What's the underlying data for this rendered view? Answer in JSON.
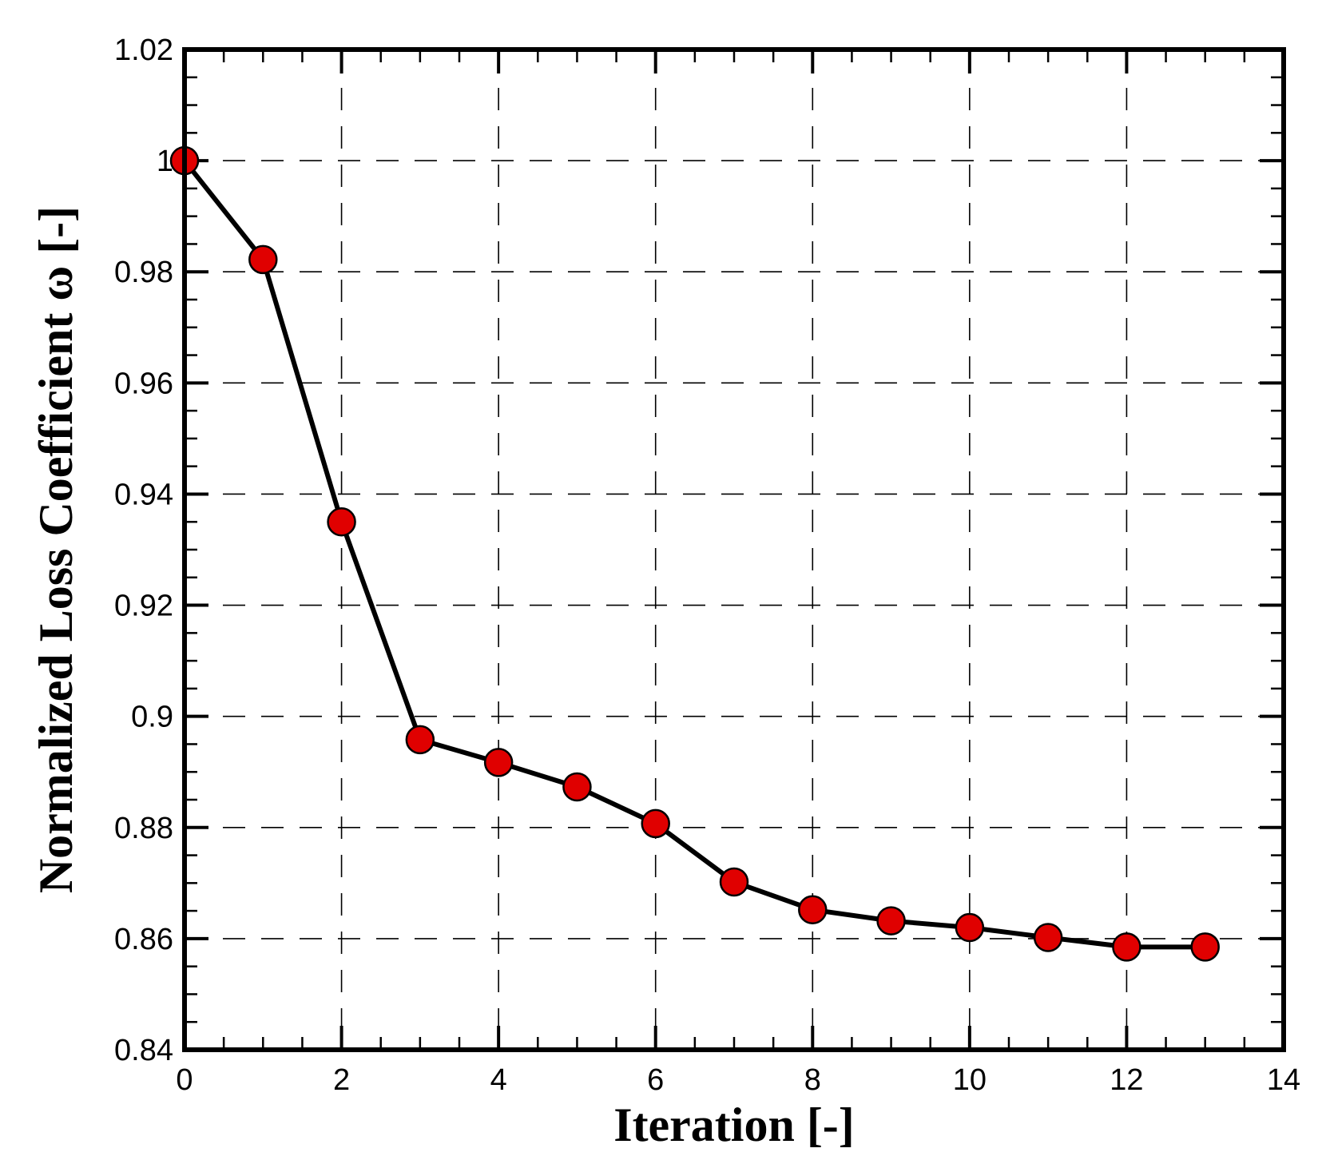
{
  "chart_data": {
    "type": "line",
    "title": "",
    "xlabel": "Iteration [-]",
    "ylabel": "Normalized Loss Coefficient ω [-]",
    "xlim": [
      0,
      14
    ],
    "ylim": [
      0.84,
      1.02
    ],
    "x_ticks": [
      0,
      2,
      4,
      6,
      8,
      10,
      12,
      14
    ],
    "x_tick_labels": [
      "0",
      "2",
      "4",
      "6",
      "8",
      "10",
      "12",
      "14"
    ],
    "y_ticks": [
      0.84,
      0.86,
      0.88,
      0.9,
      0.92,
      0.94,
      0.96,
      0.98,
      1.0,
      1.02
    ],
    "y_tick_labels": [
      "0.84",
      "0.86",
      "0.88",
      "0.9",
      "0.92",
      "0.94",
      "0.96",
      "0.98",
      "1",
      "1.02"
    ],
    "grid": true,
    "grid_style": "dashed",
    "legend": "none",
    "series": [
      {
        "x": [
          0,
          1,
          2,
          3,
          4,
          5,
          6,
          7,
          8,
          9,
          10,
          11,
          12,
          13
        ],
        "values": [
          1.0,
          0.9822,
          0.935,
          0.8958,
          0.8917,
          0.8873,
          0.8807,
          0.8702,
          0.8652,
          0.8632,
          0.862,
          0.8602,
          0.8585,
          0.8585
        ],
        "line_color": "#000000",
        "marker": "circle",
        "marker_color": "#e00000"
      }
    ]
  }
}
